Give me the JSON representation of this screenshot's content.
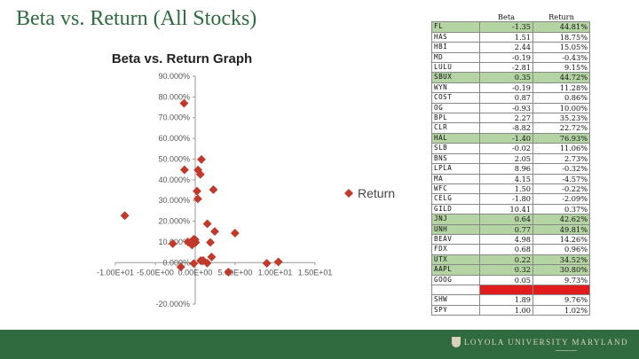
{
  "slide": {
    "title": "Beta vs. Return (All Stocks)"
  },
  "footer": {
    "logo_text": "LOYOLA UNIVERSITY MARYLAND"
  },
  "chart_data": {
    "type": "scatter",
    "title": "Beta vs. Return Graph",
    "legend": {
      "label": "Return",
      "placement": "right"
    },
    "x_ticks": [
      "-1.00E+01",
      "-5.00E+00",
      "0.00E+00",
      "5.00E+00",
      "1.00E+01",
      "1.50E+01"
    ],
    "y_ticks": [
      "-20.000%",
      "0.000%",
      "10.000%",
      "20.000%",
      "30.000%",
      "40.000%",
      "50.000%",
      "60.000%",
      "70.000%",
      "80.000%",
      "90.000%"
    ],
    "xlim": [
      -10,
      15
    ],
    "ylim": [
      -20,
      90
    ],
    "grid": false,
    "marker_color": "#c0392b",
    "series": [
      {
        "name": "Return",
        "x": [
          -1.35,
          1.51,
          2.44,
          -0.19,
          -2.81,
          0.35,
          -0.19,
          0.87,
          -0.93,
          2.27,
          -8.82,
          -1.4,
          -0.02,
          2.05,
          8.96,
          4.15,
          1.5,
          -1.8,
          10.41,
          0.64,
          0.77,
          4.98,
          0.68,
          0.22,
          0.32,
          0.05,
          -0.4,
          1.89,
          1.0
        ],
        "y": [
          44.81,
          18.75,
          15.05,
          -0.43,
          9.15,
          44.72,
          11.28,
          0.86,
          10.0,
          35.23,
          22.72,
          76.93,
          11.06,
          2.73,
          -0.32,
          -4.57,
          -0.22,
          -2.09,
          0.37,
          42.62,
          49.81,
          14.26,
          0.96,
          34.52,
          30.8,
          9.73,
          8.5,
          9.76,
          1.02
        ]
      }
    ]
  },
  "table": {
    "headers": [
      "",
      "Beta",
      "Return"
    ],
    "rows": [
      {
        "ticker": "FL",
        "beta": "-1.35",
        "ret": "44.81%",
        "hl": "green"
      },
      {
        "ticker": "HAS",
        "beta": "1.51",
        "ret": "18.75%",
        "hl": ""
      },
      {
        "ticker": "HBI",
        "beta": "2.44",
        "ret": "15.05%",
        "hl": ""
      },
      {
        "ticker": "MD",
        "beta": "-0.19",
        "ret": "-0.43%",
        "hl": ""
      },
      {
        "ticker": "LULU",
        "beta": "-2.81",
        "ret": "9.15%",
        "hl": ""
      },
      {
        "ticker": "SBUX",
        "beta": "0.35",
        "ret": "44.72%",
        "hl": "green"
      },
      {
        "ticker": "WYN",
        "beta": "-0.19",
        "ret": "11.28%",
        "hl": ""
      },
      {
        "ticker": "COST",
        "beta": "0.87",
        "ret": "0.86%",
        "hl": ""
      },
      {
        "ticker": "OG",
        "beta": "-0.93",
        "ret": "10.00%",
        "hl": ""
      },
      {
        "ticker": "BPL",
        "beta": "2.27",
        "ret": "35.23%",
        "hl": ""
      },
      {
        "ticker": "CLR",
        "beta": "-8.82",
        "ret": "22.72%",
        "hl": ""
      },
      {
        "ticker": "HAL",
        "beta": "-1.40",
        "ret": "76.93%",
        "hl": "green"
      },
      {
        "ticker": "SLB",
        "beta": "-0.02",
        "ret": "11.06%",
        "hl": ""
      },
      {
        "ticker": "BNS",
        "beta": "2.05",
        "ret": "2.73%",
        "hl": ""
      },
      {
        "ticker": "LPLA",
        "beta": "8.96",
        "ret": "-0.32%",
        "hl": ""
      },
      {
        "ticker": "MA",
        "beta": "4.15",
        "ret": "-4.57%",
        "hl": ""
      },
      {
        "ticker": "WFC",
        "beta": "1.50",
        "ret": "-0.22%",
        "hl": ""
      },
      {
        "ticker": "CELG",
        "beta": "-1.80",
        "ret": "-2.09%",
        "hl": ""
      },
      {
        "ticker": "GILD",
        "beta": "10.41",
        "ret": "0.37%",
        "hl": ""
      },
      {
        "ticker": "JNJ",
        "beta": "0.64",
        "ret": "42.62%",
        "hl": "green"
      },
      {
        "ticker": "UNH",
        "beta": "0.77",
        "ret": "49.81%",
        "hl": "green"
      },
      {
        "ticker": "BEAV",
        "beta": "4.98",
        "ret": "14.26%",
        "hl": ""
      },
      {
        "ticker": "FDX",
        "beta": "0.68",
        "ret": "0.96%",
        "hl": ""
      },
      {
        "ticker": "UTX",
        "beta": "0.22",
        "ret": "34.52%",
        "hl": "green"
      },
      {
        "ticker": "AAPL",
        "beta": "0.32",
        "ret": "30.80%",
        "hl": "green"
      },
      {
        "ticker": "GOOG",
        "beta": "0.05",
        "ret": "9.73%",
        "hl": ""
      },
      {
        "ticker": "",
        "beta": "",
        "ret": "",
        "hl": "red"
      },
      {
        "ticker": "SHW",
        "beta": "1.89",
        "ret": "9.76%",
        "hl": ""
      },
      {
        "ticker": "SPY",
        "beta": "1.00",
        "ret": "1.02%",
        "hl": ""
      }
    ]
  }
}
